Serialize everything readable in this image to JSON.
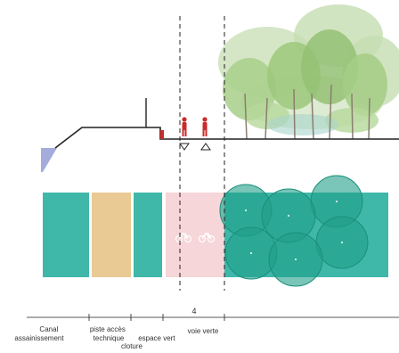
{
  "diagram": {
    "measure_label": "4",
    "colors": {
      "teal": "#3fb8aa",
      "tan": "#e9c994",
      "pink": "#f6d6d8",
      "canal_water": "#9aa3d8",
      "tree_circle": "#1f9e88",
      "pedestrian": "#cc2a2a",
      "foliage": "#9cc87a",
      "ground_line": "#222222"
    },
    "zones": [
      {
        "id": "canal",
        "label_lines": [
          "Canal",
          "assainissement"
        ]
      },
      {
        "id": "piste",
        "label_lines": [
          "piste accès",
          "technique"
        ]
      },
      {
        "id": "espace",
        "label_lines": [
          "espace vert",
          "cloture"
        ]
      },
      {
        "id": "voie",
        "label_lines": [
          "voie verte"
        ]
      }
    ],
    "icons": [
      "pedestrian-icon",
      "pedestrian-icon",
      "bicycle-icon",
      "bicycle-icon",
      "marker-triangle-down-icon",
      "marker-triangle-up-icon"
    ]
  }
}
